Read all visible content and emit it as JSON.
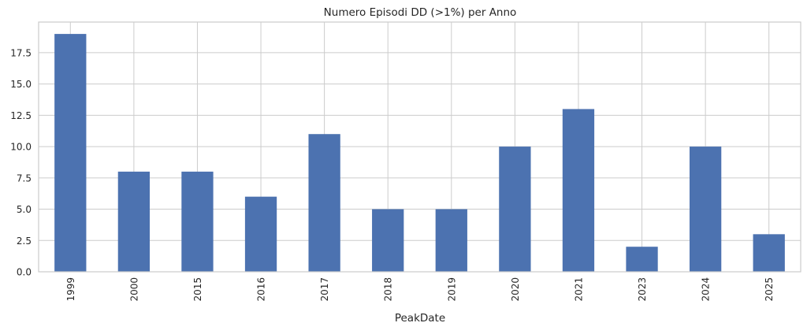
{
  "chart_data": {
    "type": "bar",
    "title": "Numero Episodi DD (>1%) per Anno",
    "xlabel": "PeakDate",
    "ylabel": "",
    "categories": [
      "1999",
      "2000",
      "2015",
      "2016",
      "2017",
      "2018",
      "2019",
      "2020",
      "2021",
      "2023",
      "2024",
      "2025"
    ],
    "values": [
      19,
      8,
      8,
      6,
      11,
      5,
      5,
      10,
      13,
      2,
      10,
      3
    ],
    "ylim": [
      0,
      19.95
    ],
    "yticks": [
      "0.0",
      "2.5",
      "5.0",
      "7.5",
      "10.0",
      "12.5",
      "15.0",
      "17.5"
    ],
    "grid": true,
    "legend": "none",
    "colors": {
      "bar": "#4c72b0",
      "grid": "#cccccc",
      "frame": "#cccccc"
    }
  }
}
